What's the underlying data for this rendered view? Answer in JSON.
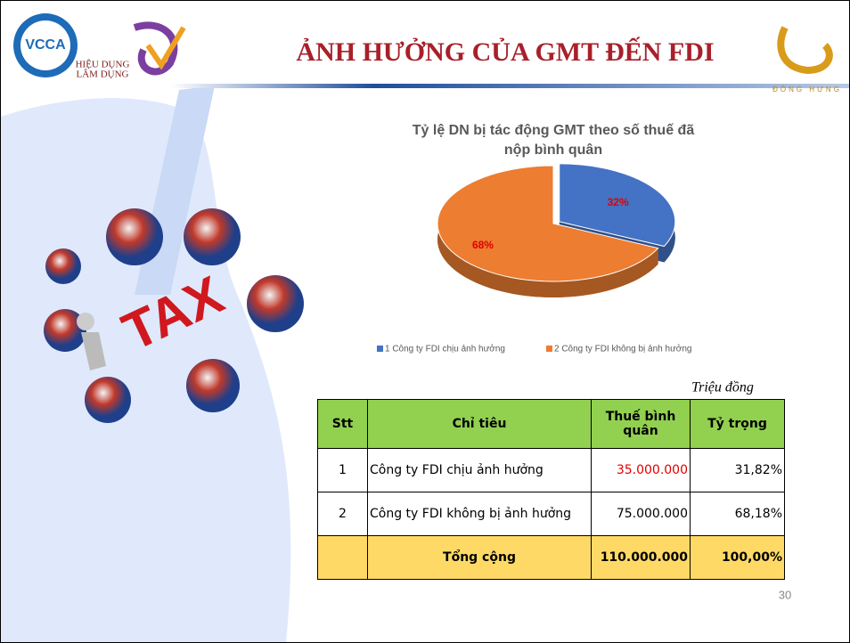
{
  "header": {
    "logo_left": "VCCA",
    "logo_text_1": "HIỆU DỤNG",
    "logo_text_2": "LÂM DỤNG",
    "title": "ẢNH HƯỞNG CỦA GMT ĐẾN FDI",
    "logo_right": "ĐÔNG HƯNG"
  },
  "illustration_text": "TAX",
  "chart_data": {
    "type": "pie",
    "title": "Tỷ lệ DN bị tác động GMT theo số thuế đã nộp bình quân",
    "categories": [
      "1 Công ty FDI chịu ảnh hưởng",
      "2 Công ty FDI không bị ảnh hưởng"
    ],
    "values": [
      32,
      68
    ],
    "value_labels": [
      "32%",
      "68%"
    ],
    "colors": [
      "#4472c4",
      "#ed7d31"
    ],
    "legend": "bottom"
  },
  "table": {
    "unit": "Triệu đồng",
    "header": [
      "Stt",
      "Chỉ tiêu",
      "Thuế bình quân",
      "Tỷ trọng"
    ],
    "rows": [
      [
        "1",
        "Công ty FDI chịu ảnh hưởng",
        "35.000.000",
        "31,82%"
      ],
      [
        "2",
        "Công ty FDI không bị ảnh hưởng",
        "75.000.000",
        "68,18%"
      ],
      [
        "",
        "Tổng cộng",
        "110.000.000",
        "100,00%"
      ]
    ]
  },
  "page_number": "30"
}
